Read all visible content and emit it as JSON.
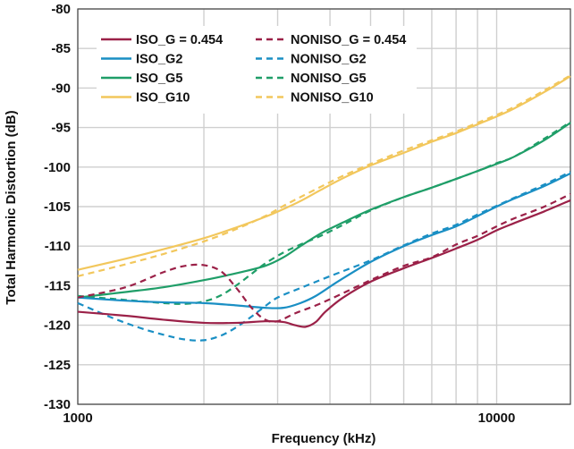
{
  "chart_data": {
    "type": "line",
    "title": "",
    "xlabel": "Frequency (kHz)",
    "ylabel": "Total Harmonic Distortion (dB)",
    "xscale": "log",
    "xlim": [
      1000,
      15000
    ],
    "ylim": [
      -130,
      -80
    ],
    "x_ticks": [
      {
        "value": 1000,
        "label": "1000"
      },
      {
        "value": 10000,
        "label": "10000"
      }
    ],
    "y_ticks": [
      {
        "value": -80,
        "label": "-80"
      },
      {
        "value": -85,
        "label": "-85"
      },
      {
        "value": -90,
        "label": "-90"
      },
      {
        "value": -95,
        "label": "-95"
      },
      {
        "value": -100,
        "label": "-100"
      },
      {
        "value": -105,
        "label": "-105"
      },
      {
        "value": -110,
        "label": "-110"
      },
      {
        "value": -115,
        "label": "-115"
      },
      {
        "value": -120,
        "label": "-120"
      },
      {
        "value": -125,
        "label": "-125"
      },
      {
        "value": -130,
        "label": "-130"
      }
    ],
    "grid": true,
    "legend_position": "top-left",
    "series": [
      {
        "name": "ISO_G = 0.454",
        "color": "#9b2148",
        "dash": "solid",
        "x": [
          1000,
          1300,
          1600,
          2000,
          2400,
          2800,
          3100,
          3300,
          3500,
          3700,
          3900,
          4300,
          5000,
          6000,
          7000,
          8000,
          9000,
          10000,
          11000,
          13000,
          15000
        ],
        "y": [
          -118.3,
          -118.8,
          -119.3,
          -119.7,
          -119.7,
          -119.5,
          -119.6,
          -120.0,
          -120.2,
          -119.6,
          -118.3,
          -116.5,
          -114.5,
          -112.8,
          -111.5,
          -110.3,
          -109.2,
          -108.0,
          -107.1,
          -105.6,
          -104.2
        ]
      },
      {
        "name": "NONISO_G = 0.454",
        "color": "#9b2148",
        "dash": "dashed",
        "x": [
          1000,
          1300,
          1600,
          1800,
          2000,
          2200,
          2400,
          2600,
          2800,
          3000,
          3300,
          3700,
          4200,
          5000,
          6000,
          7000,
          8000,
          9000,
          10000,
          11000,
          13000,
          15000
        ],
        "y": [
          -116.5,
          -115.2,
          -113.3,
          -112.5,
          -112.4,
          -113.2,
          -115.4,
          -117.8,
          -119.3,
          -119.5,
          -118.5,
          -117.5,
          -116.2,
          -114.3,
          -112.5,
          -111.4,
          -109.8,
          -108.7,
          -107.5,
          -106.5,
          -105.0,
          -103.4
        ]
      },
      {
        "name": "ISO_G2",
        "color": "#1a8fc4",
        "dash": "solid",
        "x": [
          1000,
          1300,
          1600,
          2000,
          2400,
          2800,
          3100,
          3400,
          3700,
          4200,
          5000,
          6000,
          7000,
          8000,
          9000,
          10000,
          11000,
          13000,
          15000
        ],
        "y": [
          -116.5,
          -116.9,
          -117.1,
          -117.2,
          -117.5,
          -117.8,
          -117.8,
          -117.2,
          -116.3,
          -114.4,
          -112.0,
          -110.0,
          -108.6,
          -107.5,
          -106.2,
          -105.0,
          -104.0,
          -102.4,
          -100.8
        ]
      },
      {
        "name": "NONISO_G2",
        "color": "#1a8fc4",
        "dash": "dashed",
        "x": [
          1000,
          1200,
          1400,
          1600,
          1800,
          2000,
          2200,
          2400,
          2600,
          2800,
          3000,
          3400,
          4000,
          5000,
          6000,
          7000,
          8000,
          9000,
          10000,
          11000,
          13000,
          15000
        ],
        "y": [
          -117.2,
          -119.0,
          -120.3,
          -121.2,
          -121.8,
          -121.9,
          -121.3,
          -120.2,
          -118.9,
          -117.6,
          -116.5,
          -115.3,
          -113.8,
          -111.8,
          -109.9,
          -108.4,
          -107.3,
          -106.0,
          -104.9,
          -103.9,
          -102.2,
          -100.6
        ]
      },
      {
        "name": "ISO_G5",
        "color": "#1f9e68",
        "dash": "solid",
        "x": [
          1000,
          1300,
          1600,
          2000,
          2400,
          2800,
          3100,
          3400,
          3800,
          4300,
          5000,
          6000,
          7000,
          8000,
          9000,
          10000,
          11000,
          13000,
          15000
        ],
        "y": [
          -116.5,
          -115.8,
          -115.2,
          -114.3,
          -113.4,
          -112.5,
          -111.4,
          -110.0,
          -108.4,
          -107.0,
          -105.4,
          -103.8,
          -102.6,
          -101.5,
          -100.5,
          -99.6,
          -98.7,
          -96.6,
          -94.4
        ]
      },
      {
        "name": "NONISO_G5",
        "color": "#1f9e68",
        "dash": "dashed",
        "x": [
          1000,
          1300,
          1600,
          1800,
          2000,
          2200,
          2400,
          2600,
          2800,
          3100,
          3400,
          3800,
          4300,
          5000,
          6000,
          7000,
          8000,
          9000,
          10000,
          11000,
          13000,
          15000
        ],
        "y": [
          -116.3,
          -116.8,
          -117.2,
          -117.3,
          -117.0,
          -116.2,
          -114.9,
          -113.5,
          -112.2,
          -110.8,
          -109.8,
          -108.7,
          -107.3,
          -105.5,
          -103.8,
          -102.6,
          -101.5,
          -100.5,
          -99.5,
          -98.7,
          -96.4,
          -94.3
        ]
      },
      {
        "name": "ISO_G10",
        "color": "#f2c75c",
        "dash": "solid",
        "x": [
          1000,
          1300,
          1600,
          2000,
          2400,
          2800,
          3100,
          3400,
          3800,
          4300,
          5000,
          6000,
          7000,
          8000,
          9000,
          10000,
          11000,
          13000,
          15000
        ],
        "y": [
          -113.0,
          -111.6,
          -110.4,
          -109.0,
          -107.6,
          -106.3,
          -105.3,
          -104.3,
          -102.9,
          -101.4,
          -99.8,
          -98.2,
          -96.8,
          -95.7,
          -94.6,
          -93.6,
          -92.6,
          -90.5,
          -88.5
        ]
      },
      {
        "name": "NONISO_G10",
        "color": "#f2c75c",
        "dash": "dashed",
        "x": [
          1000,
          1300,
          1600,
          2000,
          2400,
          2800,
          3100,
          3400,
          3800,
          4300,
          5000,
          6000,
          7000,
          8000,
          9000,
          10000,
          11000,
          13000,
          15000
        ],
        "y": [
          -113.8,
          -112.3,
          -111.0,
          -109.4,
          -107.8,
          -106.2,
          -104.9,
          -103.8,
          -102.5,
          -101.1,
          -99.6,
          -97.9,
          -96.6,
          -95.5,
          -94.4,
          -93.4,
          -92.4,
          -90.3,
          -88.4
        ]
      }
    ]
  }
}
